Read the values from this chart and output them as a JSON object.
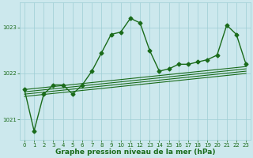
{
  "title": "Graphe pression niveau de la mer (hPa)",
  "background_color": "#cce8ed",
  "grid_color": "#9ecdd4",
  "line_color": "#1a6b1a",
  "text_color": "#1a6b1a",
  "xlim": [
    -0.5,
    23.5
  ],
  "ylim": [
    1020.55,
    1023.55
  ],
  "yticks": [
    1021,
    1022,
    1023
  ],
  "xticks": [
    0,
    1,
    2,
    3,
    4,
    5,
    6,
    7,
    8,
    9,
    10,
    11,
    12,
    13,
    14,
    15,
    16,
    17,
    18,
    19,
    20,
    21,
    22,
    23
  ],
  "y_vals": [
    1021.65,
    1020.75,
    1021.55,
    1021.75,
    1021.75,
    1021.55,
    1021.75,
    1022.05,
    1022.45,
    1022.85,
    1022.9,
    1023.2,
    1023.1,
    1022.5,
    1022.05,
    1022.1,
    1022.2,
    1022.2,
    1022.25,
    1022.3,
    1022.4,
    1023.05,
    1022.85,
    1022.2
  ],
  "trend_lines": [
    [
      1021.65,
      1022.15
    ],
    [
      1021.6,
      1022.1
    ],
    [
      1021.55,
      1022.05
    ],
    [
      1021.5,
      1022.0
    ]
  ],
  "marker": "D",
  "markersize": 2.5,
  "linewidth": 1.0,
  "trend_linewidth": 0.8,
  "tick_fontsize": 5,
  "label_fontsize": 6.5
}
